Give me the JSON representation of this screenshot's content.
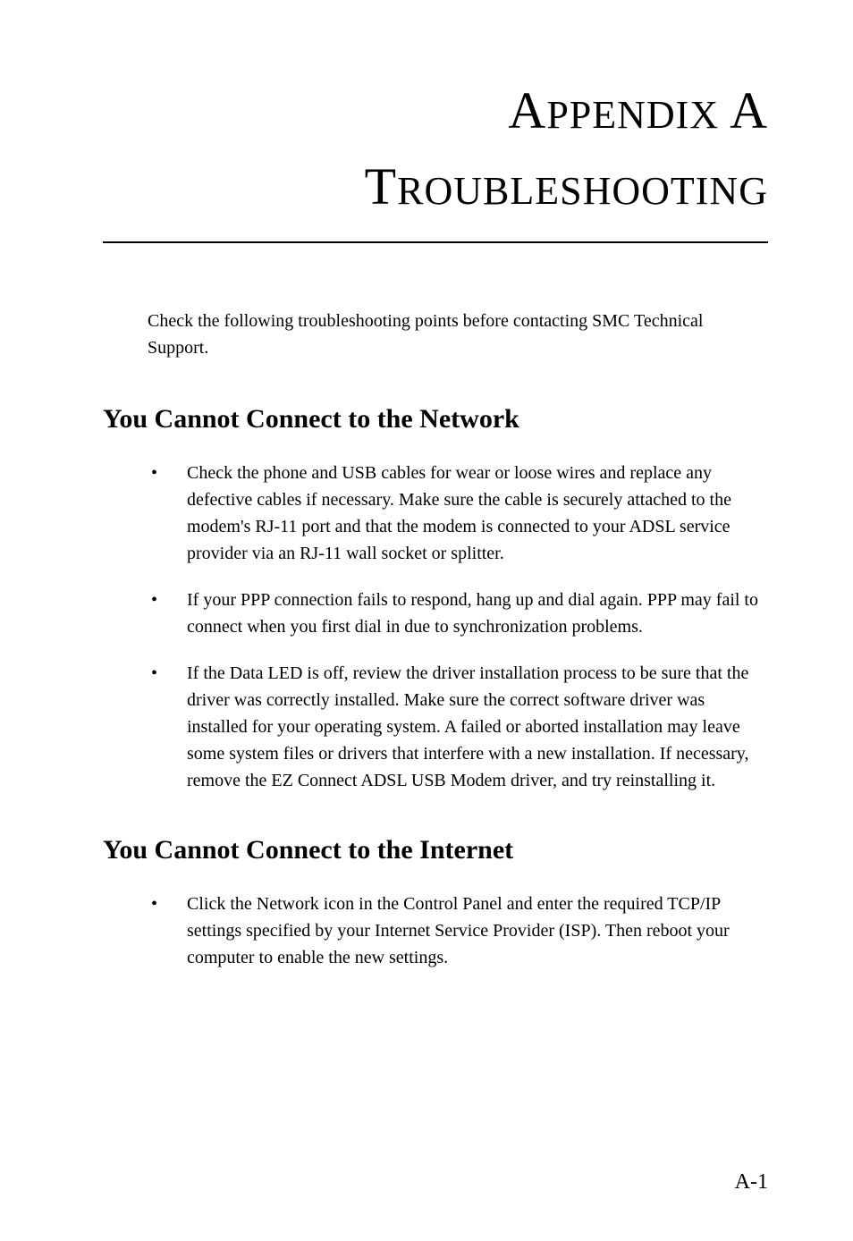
{
  "title": {
    "appendix_prefix_cap": "A",
    "appendix_prefix_rest": "PPENDIX",
    "appendix_letter": "A",
    "chapter_cap": "T",
    "chapter_rest": "ROUBLESHOOTING"
  },
  "intro": "Check the following troubleshooting points before contacting SMC Technical Support.",
  "sections": [
    {
      "heading": "You Cannot Connect to the Network",
      "bullets": [
        "Check the phone and USB cables for wear or loose wires and replace any defective cables if necessary. Make sure the cable is securely attached to the modem's RJ-11 port and that the modem is connected to your ADSL service provider via an RJ-11 wall socket or splitter.",
        "If your PPP connection fails to respond, hang up and dial again. PPP may fail to connect when you first dial in due to synchronization problems.",
        "If the Data LED is off, review the driver installation process to be sure that the driver was correctly installed. Make sure the correct software driver was installed for your operating system. A failed or aborted installation may leave some system files or drivers that interfere with a new installation. If necessary, remove the EZ Connect ADSL USB Modem driver, and try reinstalling it."
      ]
    },
    {
      "heading": "You Cannot Connect to the Internet",
      "bullets": [
        "Click the Network icon in the Control Panel and enter the required TCP/IP settings specified by your Internet Service Provider (ISP). Then reboot your computer to enable the new settings."
      ]
    }
  ],
  "page_number": "A-1",
  "styles": {
    "background_color": "#ffffff",
    "text_color": "#000000",
    "title_fontsize_small": 44,
    "title_fontsize_large": 58,
    "section_heading_fontsize": 30,
    "body_fontsize": 20,
    "page_number_fontsize": 24,
    "rule_color": "#000000",
    "rule_width": 2.5
  }
}
